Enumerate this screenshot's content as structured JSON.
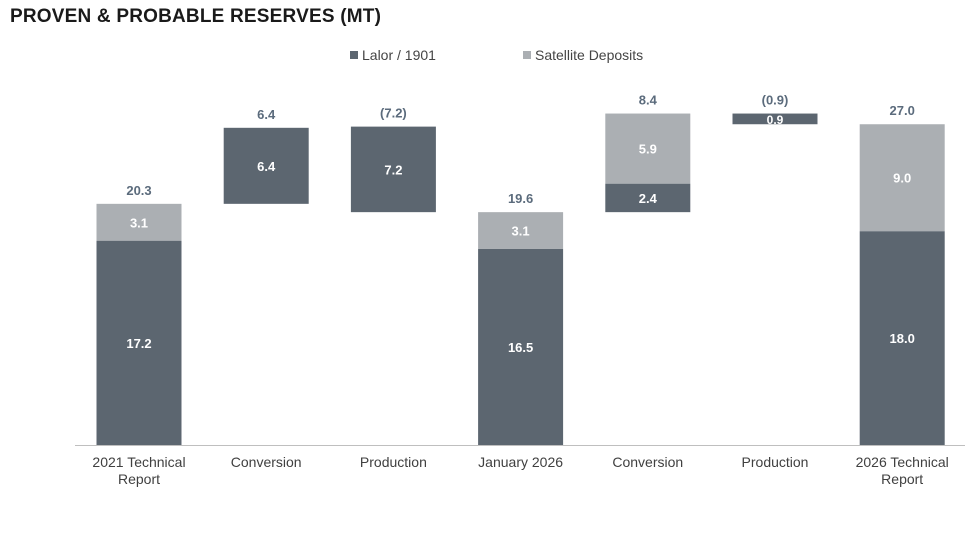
{
  "colors": {
    "lalor": "#5c6670",
    "satellite": "#abafb3",
    "label_top": "#5b6b7c",
    "axis": "#bfbfbf"
  },
  "chart_data": {
    "type": "bar",
    "subtype": "waterfall-stacked",
    "title": "PROVEN & PROBABLE RESERVES (MT)",
    "legend": {
      "position": "top",
      "entries": [
        {
          "name": "Lalor / 1901",
          "color": "#5c6670"
        },
        {
          "name": "Satellite Deposits",
          "color": "#abafb3"
        }
      ]
    },
    "ylim": [
      0,
      28
    ],
    "grid": false,
    "bars": [
      {
        "category": [
          "2021 Technical",
          "Report"
        ],
        "kind": "total",
        "lalor": 17.2,
        "satellite": 3.1,
        "lalor_label": "17.2",
        "satellite_label": "3.1",
        "total_label": "20.3"
      },
      {
        "category": [
          "Conversion"
        ],
        "kind": "increase",
        "base": 20.3,
        "lalor": 6.4,
        "satellite": 0,
        "lalor_label": "6.4",
        "satellite_label": "",
        "total_label": "6.4"
      },
      {
        "category": [
          "Production"
        ],
        "kind": "decrease",
        "base": 19.6,
        "lalor": 7.2,
        "satellite": 0,
        "lalor_label": "7.2",
        "satellite_label": "",
        "total_label": "(7.2)"
      },
      {
        "category": [
          "January 2026"
        ],
        "kind": "total",
        "lalor": 16.5,
        "satellite": 3.1,
        "lalor_label": "16.5",
        "satellite_label": "3.1",
        "total_label": "19.6"
      },
      {
        "category": [
          "Conversion"
        ],
        "kind": "increase",
        "base": 19.6,
        "lalor": 2.4,
        "satellite": 5.9,
        "lalor_label": "2.4",
        "satellite_label": "5.9",
        "total_label": "8.4"
      },
      {
        "category": [
          "Production"
        ],
        "kind": "decrease",
        "base": 27.0,
        "lalor": 0.9,
        "satellite": 0,
        "lalor_label": "0.9",
        "satellite_label": "",
        "total_label": "(0.9)"
      },
      {
        "category": [
          "2026 Technical",
          "Report"
        ],
        "kind": "total",
        "lalor": 18.0,
        "satellite": 9.0,
        "lalor_label": "18.0",
        "satellite_label": "9.0",
        "total_label": "27.0"
      }
    ]
  }
}
